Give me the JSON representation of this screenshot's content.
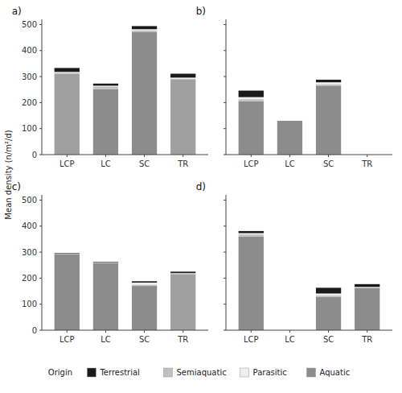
{
  "chart_data": [
    {
      "type": "bar",
      "stacked": true,
      "title": "a)",
      "ylabel": "Mean density (n/m²/d)",
      "annotations": [
        "Origin"
      ],
      "legend": "bottom",
      "categories": [
        "LCP",
        "LC",
        "SC",
        "TR"
      ],
      "series": [
        {
          "name": "Aquatic",
          "color": "#8c8c8c",
          "colors": [
            "#a0a0a0",
            "#8c8c8c",
            "#8c8c8c",
            "#a0a0a0"
          ],
          "values": [
            310,
            252,
            472,
            288
          ]
        },
        {
          "name": "Semiaquatic",
          "color": "#c0c0c0",
          "values": [
            5,
            10,
            5,
            3
          ]
        },
        {
          "name": "Parasitic",
          "color": "#efefef",
          "values": [
            3,
            3,
            5,
            5
          ]
        },
        {
          "name": "Terrestrial",
          "color": "#1a1a1a",
          "values": [
            15,
            8,
            12,
            15
          ]
        }
      ],
      "ylim": [
        0,
        520
      ],
      "yticks": [
        0,
        100,
        200,
        300,
        400,
        500
      ]
    },
    {
      "type": "bar",
      "stacked": true,
      "title": "b)",
      "tick_labels": "x",
      "categories": [
        "LCP",
        "LC",
        "SC",
        "TR"
      ],
      "series": [
        {
          "name": "Aquatic",
          "color": "#8c8c8c",
          "values": [
            205,
            130,
            265,
            0
          ]
        },
        {
          "name": "Semiaquatic",
          "color": "#c0c0c0",
          "values": [
            8,
            0,
            5,
            0
          ]
        },
        {
          "name": "Parasitic",
          "color": "#efefef",
          "values": [
            8,
            0,
            8,
            0
          ]
        },
        {
          "name": "Terrestrial",
          "color": "#1a1a1a",
          "values": [
            25,
            0,
            10,
            0
          ]
        }
      ],
      "ylim": [
        0,
        520
      ],
      "yticks": [
        0,
        100,
        200,
        300,
        400,
        500
      ]
    },
    {
      "type": "bar",
      "stacked": true,
      "title": "c)",
      "categories": [
        "LCP",
        "LC",
        "SC",
        "TR"
      ],
      "series": [
        {
          "name": "Aquatic",
          "colors": [
            "#8c8c8c",
            "#8c8c8c",
            "#8c8c8c",
            "#a0a0a0"
          ],
          "values": [
            292,
            258,
            170,
            215
          ]
        },
        {
          "name": "Semiaquatic",
          "color": "#c0c0c0",
          "values": [
            2,
            2,
            5,
            5
          ]
        },
        {
          "name": "Parasitic",
          "color": "#efefef",
          "values": [
            0,
            0,
            8,
            0
          ]
        },
        {
          "name": "Terrestrial",
          "color": "#1a1a1a",
          "values": [
            2,
            2,
            5,
            5
          ]
        }
      ],
      "ylim": [
        0,
        520
      ],
      "yticks": [
        0,
        100,
        200,
        300,
        400,
        500
      ]
    },
    {
      "type": "bar",
      "stacked": true,
      "title": "d)",
      "tick_labels": "x",
      "categories": [
        "LCP",
        "LC",
        "SC",
        "TR"
      ],
      "series": [
        {
          "name": "Aquatic",
          "color": "#8c8c8c",
          "values": [
            360,
            0,
            128,
            162
          ]
        },
        {
          "name": "Semiaquatic",
          "color": "#c0c0c0",
          "values": [
            8,
            0,
            5,
            5
          ]
        },
        {
          "name": "Parasitic",
          "color": "#efefef",
          "values": [
            5,
            0,
            8,
            0
          ]
        },
        {
          "name": "Terrestrial",
          "color": "#1a1a1a",
          "values": [
            8,
            0,
            22,
            10
          ]
        }
      ],
      "ylim": [
        0,
        520
      ],
      "yticks": [
        0,
        100,
        200,
        300,
        400,
        500
      ]
    }
  ]
}
